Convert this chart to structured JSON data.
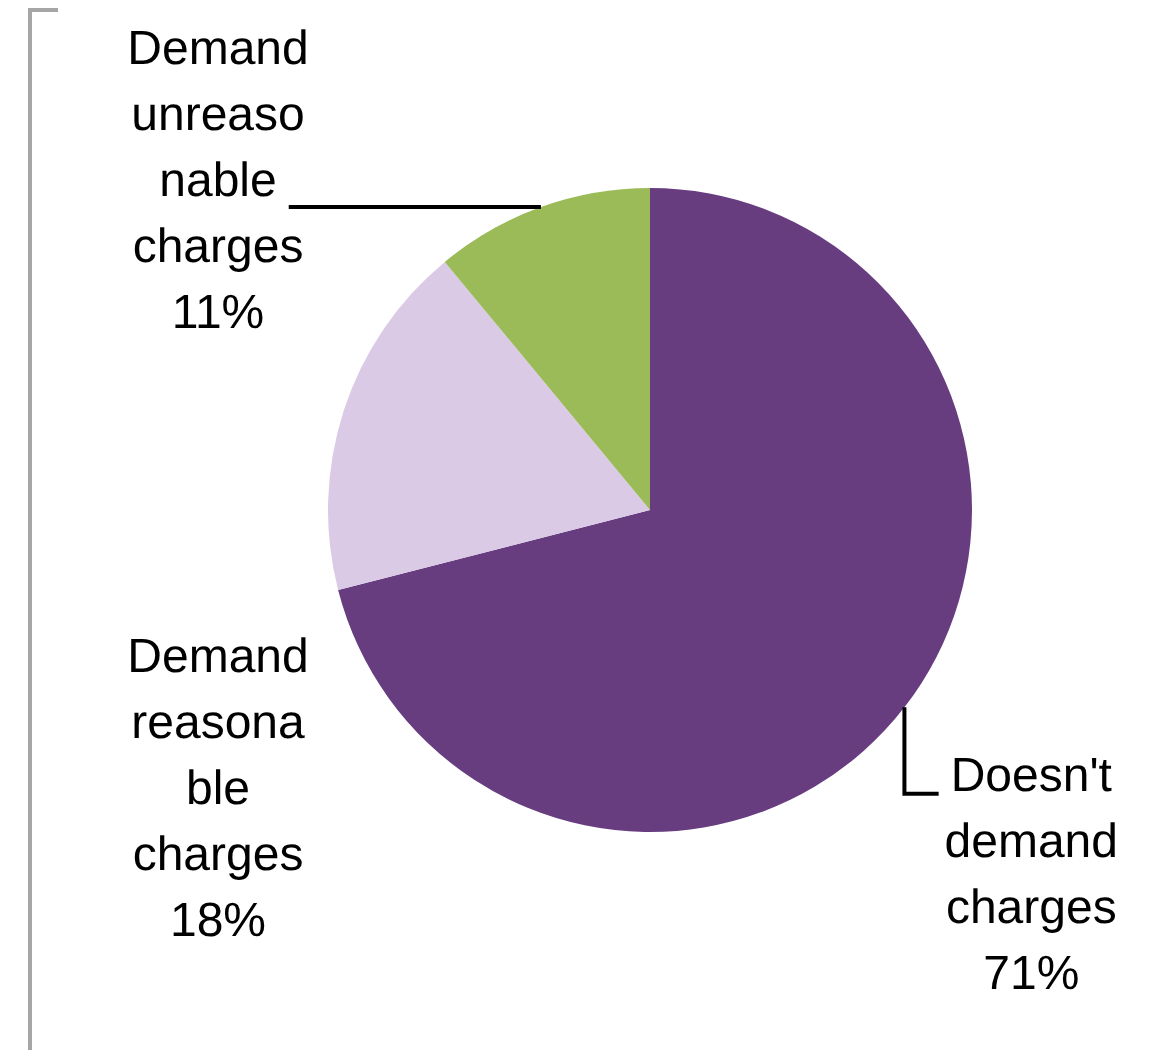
{
  "chart_data": {
    "type": "pie",
    "categories": [
      "Doesn't demand charges",
      "Demand reasonable charges",
      "Demand unreasonable charges"
    ],
    "values": [
      71,
      18,
      11
    ],
    "colors": [
      "#673d80",
      "#dacae6",
      "#9bbb59"
    ],
    "value_labels": [
      "71%",
      "18%",
      "11%"
    ]
  }
}
